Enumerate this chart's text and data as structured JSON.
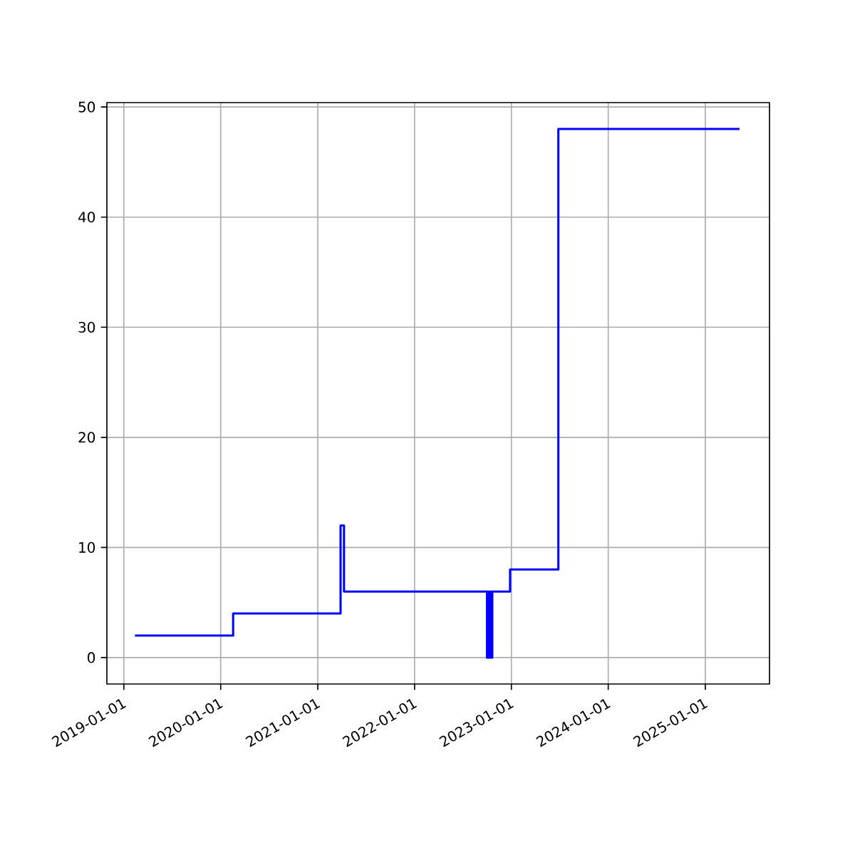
{
  "chart_data": {
    "type": "step",
    "x": [
      "2019-02-12",
      "2020-02-17",
      "2021-03-28",
      "2021-04-10",
      "2022-10-01",
      "2022-10-05",
      "2022-10-09",
      "2022-10-13",
      "2022-10-17",
      "2022-10-21",
      "2022-12-27",
      "2023-06-27",
      "2025-05-10"
    ],
    "series": [
      {
        "color": "#0000ff",
        "values": [
          2,
          4,
          12,
          6,
          0,
          6,
          0,
          6,
          0,
          6,
          8,
          48,
          48
        ]
      }
    ],
    "xlim": [
      "2018-10-29",
      "2025-08-31"
    ],
    "xticks": [
      "2019-01-01",
      "2020-01-01",
      "2021-01-01",
      "2022-01-01",
      "2023-01-01",
      "2024-01-01",
      "2025-01-01"
    ],
    "ylim": [
      -2.4,
      50.4
    ],
    "yticks": [
      0,
      10,
      20,
      30,
      40,
      50
    ],
    "grid": true
  }
}
